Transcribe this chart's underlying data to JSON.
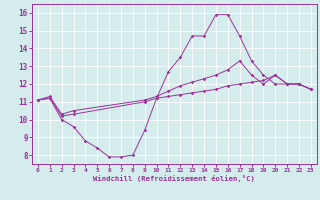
{
  "xlabel": "Windchill (Refroidissement éolien,°C)",
  "bg_color": "#d4ecec",
  "line_color": "#993399",
  "xlim": [
    -0.5,
    23.5
  ],
  "ylim": [
    7.5,
    16.5
  ],
  "yticks": [
    8,
    9,
    10,
    11,
    12,
    13,
    14,
    15,
    16
  ],
  "xticks": [
    0,
    1,
    2,
    3,
    4,
    5,
    6,
    7,
    8,
    9,
    10,
    11,
    12,
    13,
    14,
    15,
    16,
    17,
    18,
    19,
    20,
    21,
    22,
    23
  ],
  "series": [
    {
      "x": [
        0,
        1,
        2,
        3,
        4,
        5,
        6,
        7,
        8,
        9,
        10,
        11,
        12,
        13,
        14,
        15,
        16,
        17,
        18,
        19,
        20,
        21,
        22,
        23
      ],
      "y": [
        11.1,
        11.2,
        10.0,
        9.6,
        8.8,
        8.4,
        7.9,
        7.9,
        8.0,
        9.4,
        11.2,
        12.7,
        13.5,
        14.7,
        14.7,
        15.9,
        15.9,
        14.7,
        13.3,
        12.5,
        12.0,
        12.0,
        12.0,
        11.7
      ]
    },
    {
      "x": [
        0,
        1,
        2,
        3,
        9,
        10,
        11,
        12,
        13,
        14,
        15,
        16,
        17,
        18,
        19,
        20,
        21,
        22,
        23
      ],
      "y": [
        11.1,
        11.3,
        10.3,
        10.5,
        11.1,
        11.3,
        11.6,
        11.9,
        12.1,
        12.3,
        12.5,
        12.8,
        13.3,
        12.5,
        12.0,
        12.5,
        12.0,
        12.0,
        11.7
      ]
    },
    {
      "x": [
        0,
        1,
        2,
        3,
        9,
        10,
        11,
        12,
        13,
        14,
        15,
        16,
        17,
        18,
        19,
        20,
        21,
        22,
        23
      ],
      "y": [
        11.1,
        11.2,
        10.2,
        10.3,
        11.0,
        11.2,
        11.3,
        11.4,
        11.5,
        11.6,
        11.7,
        11.9,
        12.0,
        12.1,
        12.2,
        12.5,
        12.0,
        12.0,
        11.7
      ]
    }
  ]
}
